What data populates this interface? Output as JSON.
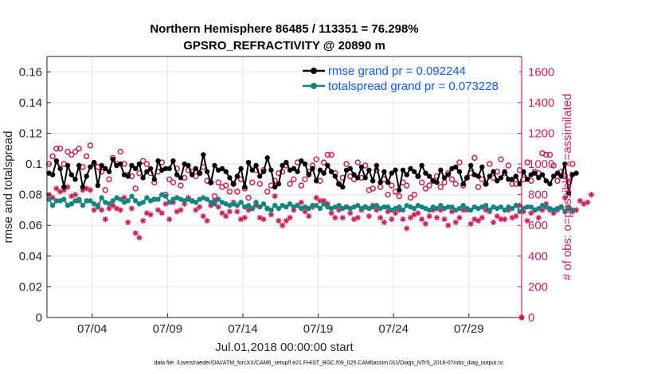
{
  "colors": {
    "rmse": "#000000",
    "spread": "#11857f",
    "obs": "#cc1f5a",
    "legend_text": "#0a58ff",
    "grid": "#e3e3e3"
  },
  "chart_data": {
    "type": "line",
    "title_line1": "Northern Hemisphere 86485 / 113351 = 76.298%",
    "title_line2": "GPSRO_REFRACTIVITY @ 20890 m",
    "xlabel": "Jul.01,2018 00:00:00 start",
    "ylabel_left": "rmse and totalspread",
    "ylabel_right": "# of obs: o=possible; ×=assimilated",
    "xlim": [
      0,
      31.5
    ],
    "ylim_left": [
      0,
      0.17
    ],
    "ylim_right": [
      0,
      1700
    ],
    "x_ticks": [
      {
        "value": 3,
        "label": "07/04"
      },
      {
        "value": 8,
        "label": "07/09"
      },
      {
        "value": 13,
        "label": "07/14"
      },
      {
        "value": 18,
        "label": "07/19"
      },
      {
        "value": 23,
        "label": "07/24"
      },
      {
        "value": 28,
        "label": "07/29"
      }
    ],
    "y_ticks_left": [
      {
        "value": 0,
        "label": "0"
      },
      {
        "value": 0.02,
        "label": "0.02"
      },
      {
        "value": 0.04,
        "label": "0.04"
      },
      {
        "value": 0.06,
        "label": "0.06"
      },
      {
        "value": 0.08,
        "label": "0.08"
      },
      {
        "value": 0.1,
        "label": "0.1"
      },
      {
        "value": 0.12,
        "label": "0.12"
      },
      {
        "value": 0.14,
        "label": "0.14"
      },
      {
        "value": 0.16,
        "label": "0.16"
      }
    ],
    "y_ticks_right": [
      {
        "value": 0,
        "label": "0"
      },
      {
        "value": 200,
        "label": "200"
      },
      {
        "value": 400,
        "label": "400"
      },
      {
        "value": 600,
        "label": "600"
      },
      {
        "value": 800,
        "label": "800"
      },
      {
        "value": 1000,
        "label": "1000"
      },
      {
        "value": 1200,
        "label": "1200"
      },
      {
        "value": 1400,
        "label": "1400"
      },
      {
        "value": 1600,
        "label": "1600"
      }
    ],
    "legend": [
      {
        "series": "rmse",
        "label": "rmse grand pr = 0.092244"
      },
      {
        "series": "spread",
        "label": "totalspread grand pr = 0.073228"
      }
    ],
    "time_step_days": 0.25,
    "rmse": [
      0.094,
      0.093,
      0.102,
      0.097,
      0.085,
      0.099,
      0.093,
      0.09,
      0.099,
      0.085,
      0.092,
      0.098,
      0.101,
      0.086,
      0.099,
      0.097,
      0.095,
      0.103,
      0.099,
      0.1,
      0.093,
      0.092,
      0.099,
      0.097,
      0.1,
      0.091,
      0.095,
      0.097,
      0.09,
      0.102,
      0.096,
      0.097,
      0.097,
      0.102,
      0.093,
      0.091,
      0.1,
      0.099,
      0.093,
      0.097,
      0.094,
      0.106,
      0.095,
      0.088,
      0.099,
      0.096,
      0.097,
      0.095,
      0.091,
      0.087,
      0.092,
      0.097,
      0.085,
      0.101,
      0.096,
      0.099,
      0.092,
      0.095,
      0.104,
      0.096,
      0.085,
      0.087,
      0.099,
      0.101,
      0.096,
      0.097,
      0.095,
      0.102,
      0.1,
      0.093,
      0.097,
      0.089,
      0.096,
      0.094,
      0.099,
      0.095,
      0.092,
      0.087,
      0.085,
      0.096,
      0.097,
      0.093,
      0.091,
      0.098,
      0.091,
      0.096,
      0.089,
      0.099,
      0.088,
      0.095,
      0.088,
      0.094,
      0.096,
      0.083,
      0.096,
      0.093,
      0.097,
      0.095,
      0.092,
      0.099,
      0.094,
      0.092,
      0.089,
      0.088,
      0.096,
      0.091,
      0.093,
      0.097,
      0.098,
      0.095,
      0.087,
      0.091,
      0.099,
      0.093,
      0.092,
      0.098,
      0.087,
      0.092,
      0.095,
      0.089,
      0.091,
      0.095,
      0.09,
      0.09,
      0.092,
      0.087,
      0.095,
      0.09,
      0.093,
      0.094,
      0.091,
      0.093,
      0.089,
      0.087,
      0.092,
      0.094,
      0.092,
      0.1,
      0.081,
      0.093,
      0.094
    ],
    "totalspread": [
      0.077,
      0.073,
      0.076,
      0.076,
      0.077,
      0.073,
      0.074,
      0.076,
      0.077,
      0.073,
      0.076,
      0.076,
      0.074,
      0.072,
      0.078,
      0.075,
      0.074,
      0.076,
      0.078,
      0.077,
      0.075,
      0.076,
      0.079,
      0.076,
      0.074,
      0.075,
      0.078,
      0.076,
      0.077,
      0.077,
      0.08,
      0.079,
      0.075,
      0.077,
      0.078,
      0.077,
      0.076,
      0.077,
      0.076,
      0.075,
      0.077,
      0.078,
      0.077,
      0.075,
      0.074,
      0.077,
      0.075,
      0.074,
      0.073,
      0.074,
      0.073,
      0.075,
      0.072,
      0.073,
      0.071,
      0.075,
      0.072,
      0.074,
      0.071,
      0.07,
      0.073,
      0.071,
      0.073,
      0.072,
      0.074,
      0.072,
      0.073,
      0.071,
      0.072,
      0.071,
      0.073,
      0.073,
      0.071,
      0.074,
      0.072,
      0.071,
      0.072,
      0.073,
      0.071,
      0.072,
      0.071,
      0.072,
      0.073,
      0.071,
      0.072,
      0.071,
      0.072,
      0.073,
      0.071,
      0.072,
      0.072,
      0.07,
      0.071,
      0.072,
      0.07,
      0.073,
      0.072,
      0.071,
      0.073,
      0.072,
      0.071,
      0.07,
      0.072,
      0.071,
      0.073,
      0.071,
      0.072,
      0.072,
      0.07,
      0.071,
      0.073,
      0.071,
      0.07,
      0.072,
      0.071,
      0.072,
      0.073,
      0.07,
      0.072,
      0.071,
      0.072,
      0.07,
      0.072,
      0.071,
      0.073,
      0.069,
      0.071,
      0.072,
      0.072,
      0.07,
      0.071,
      0.073,
      0.072,
      0.071,
      0.07,
      0.071,
      0.072,
      0.069,
      0.071,
      0.07
    ],
    "obs_possible": [
      1000,
      1050,
      1100,
      1100,
      1000,
      1080,
      1060,
      1080,
      1100,
      980,
      1050,
      1120,
      1000,
      980,
      950,
      830,
      900,
      1040,
      1000,
      1080,
      1000,
      930,
      920,
      840,
      940,
      1020,
      1000,
      940,
      880,
      950,
      1010,
      800,
      900,
      880,
      970,
      860,
      910,
      960,
      950,
      920,
      940,
      980,
      890,
      880,
      790,
      880,
      850,
      860,
      820,
      870,
      820,
      900,
      840,
      780,
      880,
      960,
      870,
      960,
      820,
      860,
      890,
      940,
      950,
      990,
      870,
      900,
      1010,
      860,
      900,
      950,
      990,
      1030,
      890,
      1010,
      1060,
      1060,
      940,
      870,
      910,
      1000,
      920,
      900,
      1010,
      910,
      990,
      830,
      840,
      960,
      850,
      900,
      800,
      860,
      820,
      790,
      880,
      860,
      780,
      800,
      920,
      880,
      840,
      860,
      890,
      920,
      850,
      880,
      940,
      900,
      870,
      1010,
      860,
      910,
      940,
      1040,
      850,
      900,
      870,
      1000,
      910,
      950,
      1030,
      940,
      990,
      870,
      870,
      960,
      900,
      1010,
      890,
      950,
      940,
      1070,
      1060,
      1060,
      990,
      890,
      950,
      920,
      880,
      1000
    ],
    "obs_assim": [
      800,
      780,
      840,
      820,
      830,
      850,
      790,
      800,
      760,
      830,
      840,
      830,
      700,
      730,
      700,
      640,
      710,
      730,
      710,
      700,
      780,
      620,
      710,
      550,
      520,
      630,
      680,
      670,
      770,
      700,
      680,
      740,
      640,
      750,
      690,
      700,
      740,
      780,
      760,
      700,
      720,
      660,
      630,
      730,
      760,
      720,
      680,
      660,
      690,
      750,
      690,
      640,
      650,
      700,
      710,
      730,
      650,
      640,
      710,
      670,
      790,
      630,
      600,
      630,
      650,
      700,
      730,
      750,
      690,
      660,
      720,
      780,
      760,
      760,
      740,
      680,
      650,
      700,
      650,
      720,
      680,
      640,
      650,
      700,
      720,
      660,
      730,
      700,
      650,
      620,
      690,
      640,
      680,
      700,
      640,
      580,
      650,
      670,
      680,
      640,
      610,
      660,
      700,
      650,
      700,
      640,
      600,
      690,
      620,
      650,
      700,
      700,
      610,
      640,
      630,
      650,
      700,
      690,
      620,
      660,
      640,
      640,
      700,
      650,
      660,
      730,
      690,
      630,
      680,
      700,
      650,
      700,
      740,
      700,
      680,
      700,
      720,
      780,
      720,
      690,
      700,
      760,
      740,
      750,
      800
    ]
  },
  "footer": "data file: /Users/raeder/DAI/ATM_forcXX/CAM6_setup/f.e21.FHIST_BGC.f09_025.CAM6assim.011/Diags_NTrS_2018-07/obs_diag_output.nc"
}
